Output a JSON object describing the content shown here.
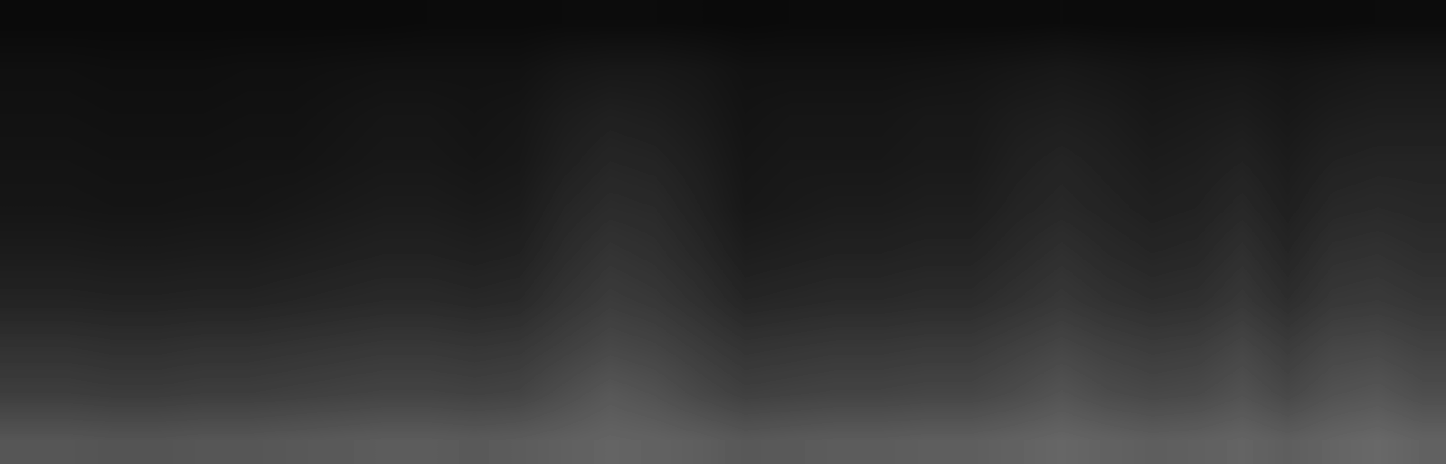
{
  "chart_data": {
    "type": "heatmap",
    "tick_labels": false,
    "color": "gray",
    "color_range": [
      0,
      255
    ],
    "cells": [
      [
        10,
        10,
        10,
        10,
        10,
        10,
        10,
        10,
        10,
        11,
        11,
        11,
        12,
        12,
        12,
        11,
        10,
        11,
        11,
        11,
        11,
        11,
        11,
        12,
        11,
        11,
        11,
        11,
        11,
        11,
        12,
        12
      ],
      [
        16,
        16,
        15,
        15,
        15,
        16,
        16,
        17,
        18,
        18,
        18,
        18,
        22,
        24,
        24,
        22,
        18,
        18,
        18,
        18,
        19,
        20,
        22,
        24,
        22,
        20,
        21,
        22,
        20,
        22,
        24,
        24
      ],
      [
        18,
        18,
        17,
        17,
        17,
        18,
        18,
        20,
        22,
        22,
        20,
        22,
        28,
        32,
        30,
        26,
        20,
        22,
        22,
        22,
        24,
        24,
        28,
        30,
        28,
        24,
        26,
        28,
        24,
        28,
        30,
        30
      ],
      [
        20,
        20,
        19,
        19,
        19,
        20,
        20,
        22,
        24,
        24,
        22,
        24,
        32,
        38,
        36,
        30,
        22,
        24,
        24,
        24,
        26,
        26,
        32,
        36,
        32,
        28,
        30,
        34,
        28,
        34,
        36,
        36
      ],
      [
        22,
        22,
        21,
        21,
        22,
        22,
        24,
        26,
        28,
        28,
        26,
        28,
        38,
        44,
        42,
        34,
        24,
        26,
        28,
        28,
        30,
        30,
        36,
        40,
        36,
        32,
        34,
        40,
        32,
        40,
        42,
        40
      ],
      [
        28,
        28,
        27,
        27,
        28,
        28,
        30,
        32,
        34,
        34,
        32,
        34,
        44,
        52,
        48,
        40,
        30,
        32,
        34,
        34,
        36,
        36,
        42,
        48,
        42,
        38,
        40,
        48,
        38,
        48,
        50,
        46
      ],
      [
        36,
        36,
        35,
        35,
        36,
        36,
        38,
        40,
        42,
        42,
        40,
        42,
        52,
        60,
        56,
        48,
        38,
        40,
        42,
        42,
        44,
        44,
        50,
        56,
        50,
        46,
        48,
        56,
        46,
        56,
        58,
        54
      ],
      [
        50,
        50,
        48,
        48,
        50,
        50,
        52,
        54,
        56,
        56,
        54,
        56,
        64,
        72,
        68,
        60,
        52,
        54,
        56,
        56,
        58,
        58,
        64,
        70,
        64,
        60,
        62,
        70,
        60,
        70,
        72,
        66
      ],
      [
        62,
        62,
        60,
        60,
        62,
        62,
        64,
        66,
        68,
        68,
        66,
        68,
        78,
        88,
        82,
        72,
        64,
        66,
        68,
        68,
        70,
        70,
        76,
        84,
        76,
        72,
        74,
        82,
        72,
        82,
        86,
        78
      ],
      [
        86,
        86,
        84,
        84,
        86,
        86,
        88,
        90,
        92,
        92,
        90,
        92,
        96,
        100,
        98,
        94,
        88,
        90,
        92,
        92,
        94,
        94,
        98,
        102,
        98,
        94,
        96,
        100,
        94,
        100,
        104,
        98
      ]
    ]
  }
}
